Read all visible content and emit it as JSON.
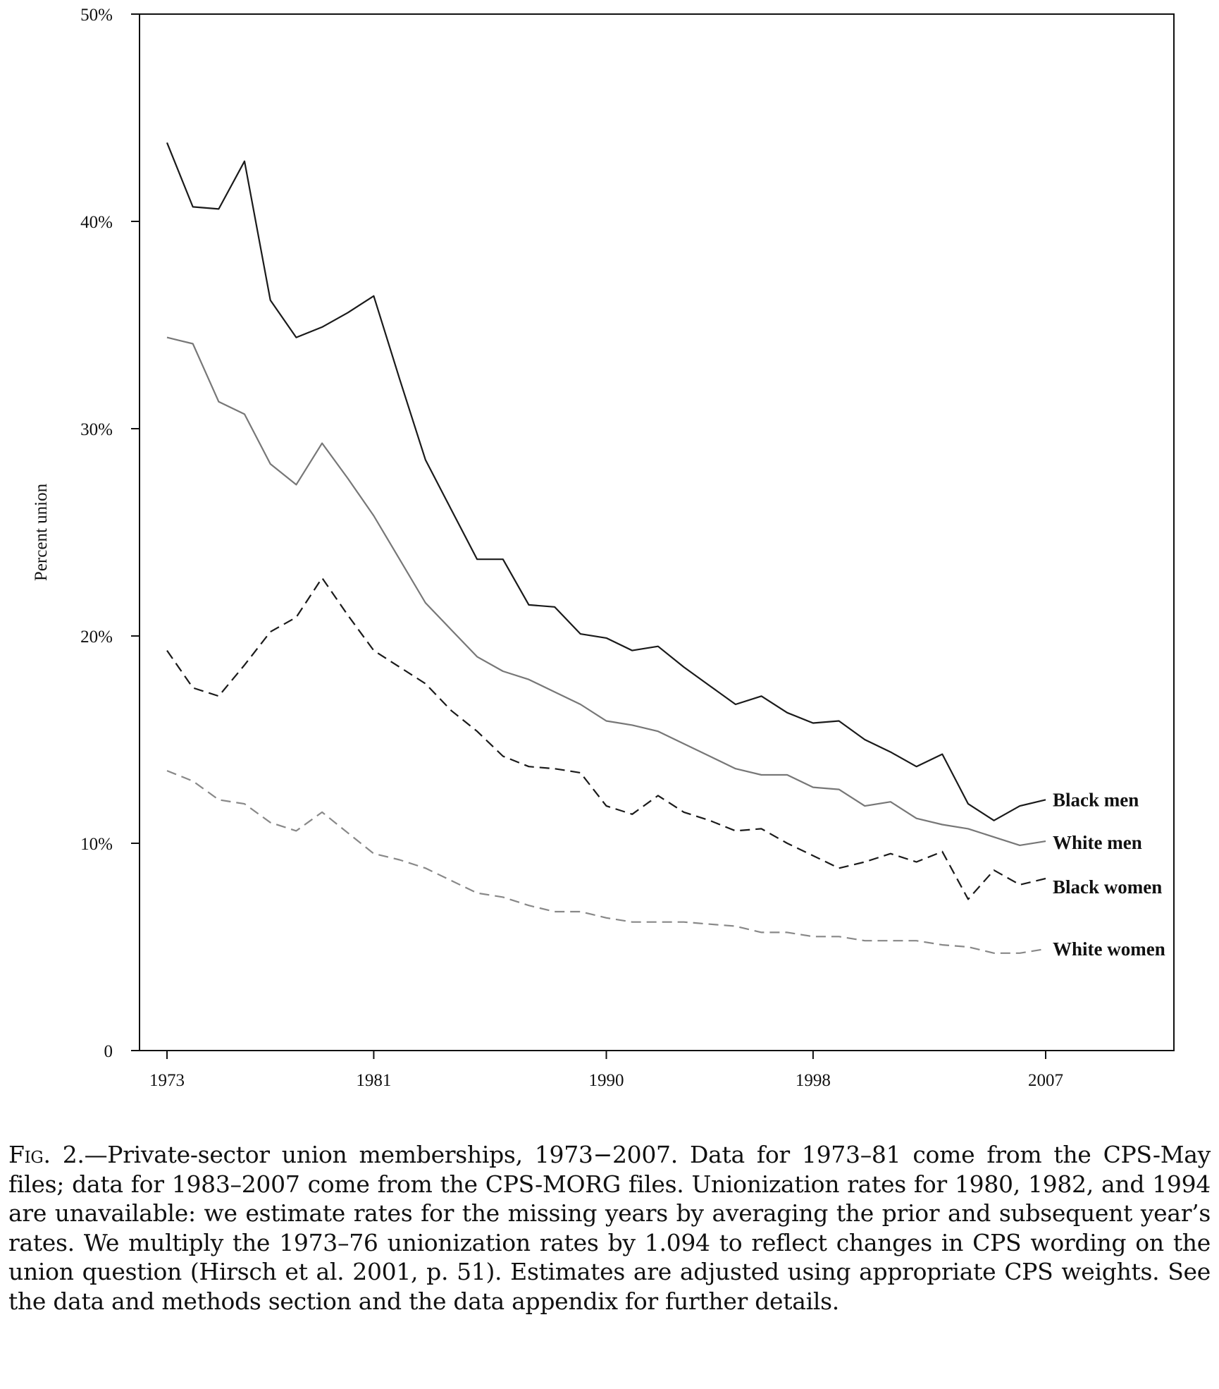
{
  "chart_data": {
    "type": "line",
    "title": "",
    "xlabel": "",
    "ylabel": "Percent union",
    "ylim": [
      0,
      50
    ],
    "xlim": [
      1973,
      2007
    ],
    "y_ticks": [
      0,
      10,
      20,
      30,
      40,
      50
    ],
    "y_tick_labels": [
      "0",
      "10%",
      "20%",
      "30%",
      "40%",
      "50%"
    ],
    "x_ticks": [
      1973,
      1981,
      1990,
      1998,
      2007
    ],
    "x_tick_labels": [
      "1973",
      "1981",
      "1990",
      "1998",
      "2007"
    ],
    "grid": false,
    "x": [
      1973,
      1974,
      1975,
      1976,
      1977,
      1978,
      1979,
      1980,
      1981,
      1982,
      1983,
      1984,
      1985,
      1986,
      1987,
      1988,
      1989,
      1990,
      1991,
      1992,
      1993,
      1994,
      1995,
      1996,
      1997,
      1998,
      1999,
      2000,
      2001,
      2002,
      2003,
      2004,
      2005,
      2006,
      2007
    ],
    "series": [
      {
        "name": "Black men",
        "style": "solid",
        "color": "#1a1a1a",
        "values": [
          43.8,
          40.7,
          40.6,
          42.9,
          36.2,
          34.4,
          34.9,
          35.6,
          36.4,
          32.4,
          28.5,
          26.1,
          23.7,
          23.7,
          21.5,
          21.4,
          20.1,
          19.9,
          19.3,
          19.5,
          18.5,
          17.6,
          16.7,
          17.1,
          16.3,
          15.8,
          15.9,
          15.0,
          14.4,
          13.7,
          14.3,
          11.9,
          11.1,
          11.8,
          12.1
        ]
      },
      {
        "name": "White men",
        "style": "solid",
        "color": "#777777",
        "values": [
          34.4,
          34.1,
          31.3,
          30.7,
          28.3,
          27.3,
          29.3,
          27.6,
          25.8,
          23.7,
          21.6,
          20.3,
          19.0,
          18.3,
          17.9,
          17.3,
          16.7,
          15.9,
          15.7,
          15.4,
          14.8,
          14.2,
          13.6,
          13.3,
          13.3,
          12.7,
          12.6,
          11.8,
          12.0,
          11.2,
          10.9,
          10.7,
          10.3,
          9.9,
          10.1
        ]
      },
      {
        "name": "Black women",
        "style": "dashed",
        "color": "#1a1a1a",
        "values": [
          19.3,
          17.5,
          17.1,
          18.6,
          20.2,
          20.9,
          22.8,
          21.0,
          19.3,
          18.5,
          17.7,
          16.4,
          15.4,
          14.2,
          13.7,
          13.6,
          13.4,
          11.8,
          11.4,
          12.3,
          11.5,
          11.1,
          10.6,
          10.7,
          10.0,
          9.4,
          8.8,
          9.1,
          9.5,
          9.1,
          9.6,
          7.3,
          8.7,
          8.0,
          8.3
        ]
      },
      {
        "name": "White women",
        "style": "dashed",
        "color": "#888888",
        "values": [
          13.5,
          13.0,
          12.1,
          11.9,
          11.0,
          10.6,
          11.5,
          10.5,
          9.5,
          9.2,
          8.8,
          8.2,
          7.6,
          7.4,
          7.0,
          6.7,
          6.7,
          6.4,
          6.2,
          6.2,
          6.2,
          6.1,
          6.0,
          5.7,
          5.7,
          5.5,
          5.5,
          5.3,
          5.3,
          5.3,
          5.1,
          5.0,
          4.7,
          4.7,
          4.9
        ]
      }
    ]
  },
  "caption": {
    "label": "Fig. 2.",
    "text": "—Private-sector union memberships, 1973−2007. Data for 1973–81 come from the CPS-May files; data for 1983–2007 come from the CPS-MORG files. Unionization rates for 1980, 1982, and 1994 are unavailable: we estimate rates for the missing years by averaging the prior and subsequent year’s rates. We multiply the 1973–76 unionization rates by 1.094 to reflect changes in CPS wording on the union question (Hirsch et al. 2001, p. 51). Estimates are adjusted using appropriate CPS weights. See the data and methods section and the data appendix for further details."
  }
}
